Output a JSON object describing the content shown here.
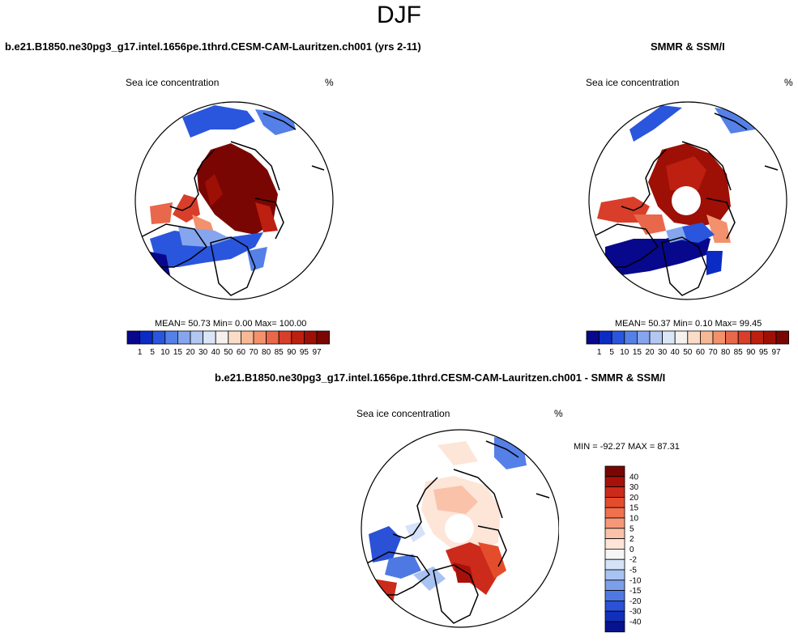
{
  "title": "DJF",
  "panels": [
    {
      "heading": "b.e21.B1850.ne30pg3_g17.intel.1656pe.1thrd.CESM-CAM-Lauritzen.ch001 (yrs 2-11)",
      "left_label": "Sea ice concentration",
      "right_label": "%",
      "stats": "MEAN=  50.73  Min=   0.00  Max= 100.00"
    },
    {
      "heading": "SMMR & SSM/I",
      "left_label": "Sea ice concentration",
      "right_label": "%",
      "stats": "MEAN=  50.37  Min=   0.10  Max=  99.45"
    },
    {
      "heading": "b.e21.B1850.ne30pg3_g17.intel.1656pe.1thrd.CESM-CAM-Lauritzen.ch001 - SMMR & SSM/I",
      "left_label": "Sea ice concentration",
      "right_label": "%",
      "stats": "MIN = -92.27 MAX =  87.31"
    }
  ],
  "colorbar_abs": {
    "labels": [
      "1",
      "5",
      "10",
      "15",
      "20",
      "30",
      "40",
      "50",
      "60",
      "70",
      "80",
      "85",
      "90",
      "95",
      "97"
    ],
    "colors": [
      "#08088c",
      "#0b2cc4",
      "#2a55dd",
      "#5480e8",
      "#85a6ee",
      "#b3c7f3",
      "#dbe5f8",
      "#f6f1ee",
      "#fbdcc9",
      "#f7b896",
      "#f2916c",
      "#e9674a",
      "#d83e2a",
      "#bd1f10",
      "#9e0f06",
      "#7a0603"
    ]
  },
  "colorbar_diff": {
    "labels": [
      "40",
      "30",
      "20",
      "15",
      "10",
      "5",
      "2",
      "0",
      "-2",
      "-5",
      "-10",
      "-15",
      "-20",
      "-30",
      "-40"
    ],
    "colors": [
      "#7a0603",
      "#a8110a",
      "#cc2a1a",
      "#e44d2c",
      "#f0714c",
      "#f5987a",
      "#f9c2a9",
      "#fde5d8",
      "#f6f6f8",
      "#d5e2f7",
      "#a8c2f1",
      "#7c9fea",
      "#4f79e2",
      "#2a51d6",
      "#1030bb",
      "#07128f"
    ]
  }
}
